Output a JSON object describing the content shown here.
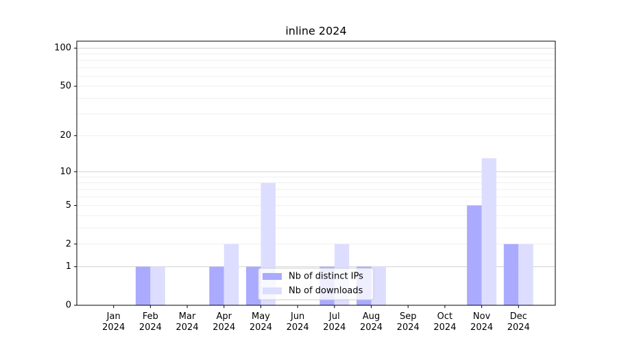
{
  "chart_data": {
    "type": "bar",
    "title": "inline 2024",
    "categories": [
      "Jan\n2024",
      "Feb\n2024",
      "Mar\n2024",
      "Apr\n2024",
      "May\n2024",
      "Jun\n2024",
      "Jul\n2024",
      "Aug\n2024",
      "Sep\n2024",
      "Oct\n2024",
      "Nov\n2024",
      "Dec\n2024"
    ],
    "series": [
      {
        "name": "Nb of distinct IPs",
        "color": "#aaaaff",
        "values": [
          0,
          1,
          0,
          1,
          1,
          0,
          1,
          1,
          0,
          0,
          5,
          2
        ]
      },
      {
        "name": "Nb of downloads",
        "color": "#ddddff",
        "values": [
          0,
          1,
          0,
          2,
          8,
          0,
          2,
          1,
          0,
          0,
          13,
          2
        ]
      }
    ],
    "yscale": "log1p",
    "ylim": [
      0,
      113.5
    ],
    "yticks": [
      0,
      1,
      2,
      5,
      10,
      20,
      50,
      100
    ],
    "major_grid": [
      1,
      10,
      100
    ],
    "minor_grid": [
      2,
      3,
      4,
      5,
      6,
      7,
      8,
      9,
      20,
      30,
      40,
      50,
      60,
      70,
      80,
      90
    ],
    "grid": true,
    "legend": "lower center"
  }
}
